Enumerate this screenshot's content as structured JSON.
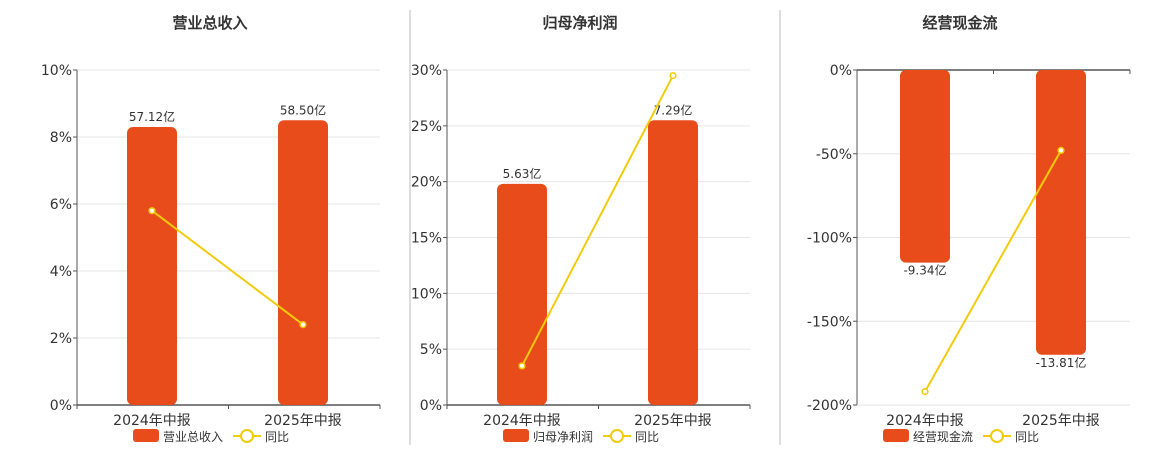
{
  "colors": {
    "bar": "#E84C1A",
    "line": "#F2CC0C",
    "grid": "#E6E6E6",
    "axis": "#555555",
    "text": "#333333",
    "separator": "#BBBBBB"
  },
  "chart_data": [
    {
      "type": "bar",
      "title": "营业总收入",
      "categories": [
        "2024年中报",
        "2025年中报"
      ],
      "series": [
        {
          "name": "营业总收入",
          "values": [
            8.3,
            8.5
          ],
          "labels": [
            "57.12亿",
            "58.50亿"
          ],
          "type": "bar"
        },
        {
          "name": "同比",
          "values": [
            5.8,
            2.4
          ],
          "type": "line"
        }
      ],
      "ylim": [
        0,
        10
      ],
      "yticks": [
        "0%",
        "2%",
        "4%",
        "6%",
        "8%",
        "10%"
      ],
      "ytick_values": [
        0,
        2,
        4,
        6,
        8,
        10
      ],
      "grid": true,
      "legend": "bottom"
    },
    {
      "type": "bar",
      "title": "归母净利润",
      "categories": [
        "2024年中报",
        "2025年中报"
      ],
      "series": [
        {
          "name": "归母净利润",
          "values": [
            19.8,
            25.5
          ],
          "labels": [
            "5.63亿",
            "7.29亿"
          ],
          "type": "bar"
        },
        {
          "name": "同比",
          "values": [
            3.5,
            29.5
          ],
          "type": "line"
        }
      ],
      "ylim": [
        0,
        30
      ],
      "yticks": [
        "0%",
        "5%",
        "10%",
        "15%",
        "20%",
        "25%",
        "30%"
      ],
      "ytick_values": [
        0,
        5,
        10,
        15,
        20,
        25,
        30
      ],
      "grid": true,
      "legend": "bottom"
    },
    {
      "type": "bar",
      "title": "经营现金流",
      "categories": [
        "2024年中报",
        "2025年中报"
      ],
      "series": [
        {
          "name": "经营现金流",
          "values": [
            -115,
            -170
          ],
          "labels": [
            "-9.34亿",
            "-13.81亿"
          ],
          "type": "bar"
        },
        {
          "name": "同比",
          "values": [
            -192,
            -48
          ],
          "type": "line"
        }
      ],
      "ylim": [
        -200,
        0
      ],
      "yticks": [
        "-200%",
        "-150%",
        "-100%",
        "-50%",
        "0%"
      ],
      "ytick_values": [
        -200,
        -150,
        -100,
        -50,
        0
      ],
      "grid": true,
      "legend": "bottom"
    }
  ]
}
